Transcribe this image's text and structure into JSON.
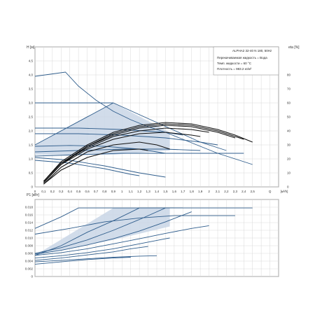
{
  "header": {
    "model": "ALPHA2 32-40 N 180, 50Hz",
    "fluid": "Перекачиваемая жидкость = Вода",
    "temp": "Темп. жидкости = 60 °C",
    "density": "Плотность = 983.2 кг/м³"
  },
  "colors": {
    "curve": "#2f5d8c",
    "fill": "#c9d6e6",
    "black": "#111111",
    "grid": "#d9d9d9",
    "axis": "#333333"
  },
  "chart_data": [
    {
      "type": "line",
      "title": "",
      "xlabel": "Q [м³/h]",
      "ylabel": "H [м]",
      "y2label": "eta [%]",
      "xlim": [
        0,
        2.8
      ],
      "ylim": [
        0,
        5.0
      ],
      "y2lim": [
        0,
        100
      ],
      "grid": true,
      "x_ticks": [
        "0",
        "0,1",
        "0,2",
        "0,3",
        "0,4",
        "0,5",
        "0,6",
        "0,7",
        "0,8",
        "0,9",
        "1",
        "1,1",
        "1,2",
        "1,3",
        "1,4",
        "1,5",
        "1,6",
        "1,7",
        "1,8",
        "1,9",
        "2",
        "2,1",
        "2,2",
        "2,3",
        "2,4",
        "2,5",
        "",
        "Q",
        "[м³/h]"
      ],
      "y_ticks": [
        "0",
        "0,5",
        "1,0",
        "1,5",
        "2,0",
        "2,5",
        "3,0",
        "3,5",
        "4,0",
        "4,5"
      ],
      "y2_ticks": [
        "0",
        "10",
        "20",
        "30",
        "40",
        "50",
        "60",
        "70",
        "80"
      ],
      "shaded_area": {
        "x": [
          0,
          0.9,
          1.55,
          1.55,
          0.9,
          0
        ],
        "y": [
          1.5,
          3.0,
          1.95,
          1.3,
          1.15,
          1.15
        ]
      },
      "series": [
        {
          "axis": "H",
          "style": "blue",
          "x": [
            0,
            0.35,
            0.5,
            0.7,
            0.9,
            1.1,
            1.3,
            1.5,
            1.7,
            1.9,
            2.1,
            2.3,
            2.5
          ],
          "y": [
            3.95,
            4.1,
            3.6,
            3.1,
            2.7,
            2.4,
            2.15,
            1.95,
            1.7,
            1.45,
            1.2,
            1.0,
            0.8
          ]
        },
        {
          "axis": "H",
          "style": "blue",
          "x": [
            0,
            0.9
          ],
          "y": [
            3.0,
            3.0
          ]
        },
        {
          "axis": "H",
          "style": "blue",
          "x": [
            0,
            0.9,
            1.4,
            1.9,
            2.2
          ],
          "y": [
            1.5,
            3.0,
            2.3,
            1.6,
            1.3
          ]
        },
        {
          "axis": "H",
          "style": "blue",
          "x": [
            0,
            0.5,
            1.0,
            1.5,
            1.7
          ],
          "y": [
            2.1,
            2.1,
            2.05,
            1.95,
            1.85
          ]
        },
        {
          "axis": "H",
          "style": "blue",
          "x": [
            0,
            0.5,
            1.0,
            1.5,
            1.9,
            2.1
          ],
          "y": [
            1.9,
            1.9,
            1.85,
            1.75,
            1.6,
            1.5
          ]
        },
        {
          "axis": "H",
          "style": "blue",
          "x": [
            0,
            0.5,
            1.0,
            1.5,
            2.0,
            2.4
          ],
          "y": [
            1.1,
            1.15,
            1.2,
            1.2,
            1.2,
            1.2
          ]
        },
        {
          "axis": "H",
          "style": "blue",
          "x": [
            0,
            0.5,
            1.0,
            1.5,
            1.9
          ],
          "y": [
            1.25,
            1.3,
            1.35,
            1.35,
            1.3
          ]
        },
        {
          "axis": "H",
          "style": "blue",
          "x": [
            0,
            0.4,
            0.8,
            1.2,
            1.5
          ],
          "y": [
            1.45,
            1.48,
            1.45,
            1.35,
            1.2
          ]
        },
        {
          "axis": "H",
          "style": "blue",
          "x": [
            0,
            0.4,
            0.8,
            1.2,
            1.5
          ],
          "y": [
            1.05,
            0.95,
            0.75,
            0.5,
            0.35
          ]
        },
        {
          "axis": "H",
          "style": "blue",
          "x": [
            0,
            0.4,
            0.8,
            1.1,
            1.2
          ],
          "y": [
            0.95,
            0.85,
            0.65,
            0.45,
            0.4
          ]
        },
        {
          "axis": "eta",
          "style": "black",
          "x": [
            0.1,
            0.3,
            0.6,
            0.9,
            1.2,
            1.5,
            1.8,
            2.1,
            2.3,
            2.5
          ],
          "y": [
            4,
            18,
            30,
            39,
            44,
            46,
            45,
            41,
            37,
            32
          ]
        },
        {
          "axis": "eta",
          "style": "black",
          "x": [
            0.1,
            0.3,
            0.6,
            0.9,
            1.2,
            1.5,
            1.8,
            2.1,
            2.4
          ],
          "y": [
            3,
            16,
            29,
            38,
            43,
            45,
            44,
            40,
            34
          ]
        },
        {
          "axis": "eta",
          "style": "black",
          "x": [
            0.1,
            0.3,
            0.6,
            0.9,
            1.2,
            1.5,
            1.8,
            2.1,
            2.3
          ],
          "y": [
            4,
            17,
            29,
            37,
            42,
            44,
            43,
            39,
            35
          ]
        },
        {
          "axis": "eta",
          "style": "black",
          "x": [
            0.1,
            0.3,
            0.6,
            0.9,
            1.2,
            1.5,
            1.8,
            2.0
          ],
          "y": [
            4,
            17,
            28,
            36,
            40,
            42,
            41,
            39
          ]
        },
        {
          "axis": "eta",
          "style": "black",
          "x": [
            0.1,
            0.3,
            0.6,
            0.9,
            1.2,
            1.5,
            1.8,
            1.9
          ],
          "y": [
            3,
            16,
            27,
            34,
            38,
            39,
            37,
            36
          ]
        },
        {
          "axis": "eta",
          "style": "black",
          "x": [
            0.1,
            0.3,
            0.6,
            0.9,
            1.2,
            1.4,
            1.55
          ],
          "y": [
            2,
            14,
            25,
            30,
            32,
            30,
            27
          ]
        },
        {
          "axis": "eta",
          "style": "black",
          "x": [
            0.1,
            0.3,
            0.6,
            0.9,
            1.2,
            1.3
          ],
          "y": [
            2,
            12,
            21,
            26,
            27,
            26
          ]
        }
      ]
    },
    {
      "type": "line",
      "title": "",
      "xlabel": "",
      "ylabel": "P1 [кВт]",
      "xlim": [
        0,
        2.8
      ],
      "ylim": [
        0,
        0.02
      ],
      "grid": true,
      "y_ticks": [
        "0",
        "0.002",
        "0.004",
        "0.006",
        "0.008",
        "0.010",
        "0.012",
        "0.014",
        "0.016",
        "0.018"
      ],
      "shaded_area": {
        "x": [
          0,
          0.9,
          1.55,
          1.55,
          0.9,
          0
        ],
        "y": [
          0.0055,
          0.0178,
          0.0178,
          0.013,
          0.0095,
          0.0055
        ]
      },
      "series": [
        {
          "x": [
            0,
            0.3,
            0.5,
            0.7,
            0.9,
            1.1,
            1.3,
            1.5,
            1.7,
            1.9,
            2.1,
            2.3,
            2.5
          ],
          "y": [
            0.0125,
            0.0155,
            0.0178,
            0.0178,
            0.0178,
            0.0178,
            0.0178,
            0.0178,
            0.0178,
            0.0178,
            0.0178,
            0.0178,
            0.0178
          ]
        },
        {
          "x": [
            0,
            0.4,
            0.8,
            1.2,
            1.6,
            2.0,
            2.3
          ],
          "y": [
            0.011,
            0.0125,
            0.0142,
            0.0152,
            0.0158,
            0.0158,
            0.0158
          ]
        },
        {
          "x": [
            0,
            0.3,
            0.6,
            0.9,
            1.2,
            1.4,
            1.6
          ],
          "y": [
            0.0055,
            0.008,
            0.0115,
            0.0145,
            0.0178,
            0.0178,
            0.0178
          ]
        },
        {
          "x": [
            0,
            0.3,
            0.6,
            0.9,
            1.2,
            1.5,
            1.7
          ],
          "y": [
            0.006,
            0.0075,
            0.0095,
            0.012,
            0.0148,
            0.0178,
            0.0178
          ]
        },
        {
          "x": [
            0,
            0.3,
            0.6,
            0.9,
            1.2,
            1.5,
            1.8
          ],
          "y": [
            0.0058,
            0.0068,
            0.0082,
            0.0098,
            0.0118,
            0.0142,
            0.0168
          ]
        },
        {
          "x": [
            0,
            0.3,
            0.6,
            0.9,
            1.2,
            1.5,
            1.8,
            2.0
          ],
          "y": [
            0.0055,
            0.0062,
            0.0072,
            0.0085,
            0.0098,
            0.0112,
            0.0125,
            0.0132
          ]
        },
        {
          "x": [
            0,
            0.3,
            0.6,
            0.9,
            1.2,
            1.5,
            1.55
          ],
          "y": [
            0.0048,
            0.0054,
            0.0062,
            0.0072,
            0.0085,
            0.0098,
            0.01
          ]
        },
        {
          "x": [
            0,
            0.3,
            0.6,
            0.9,
            1.1,
            1.3
          ],
          "y": [
            0.0042,
            0.0048,
            0.0056,
            0.0064,
            0.0072,
            0.0078
          ]
        },
        {
          "x": [
            0,
            0.3,
            0.6,
            0.9,
            1.2,
            1.4
          ],
          "y": [
            0.0038,
            0.0042,
            0.0046,
            0.005,
            0.0053,
            0.0054
          ]
        },
        {
          "x": [
            0,
            0.3,
            0.6,
            0.9,
            1.1
          ],
          "y": [
            0.0032,
            0.0038,
            0.0044,
            0.0048,
            0.005
          ]
        }
      ]
    }
  ]
}
